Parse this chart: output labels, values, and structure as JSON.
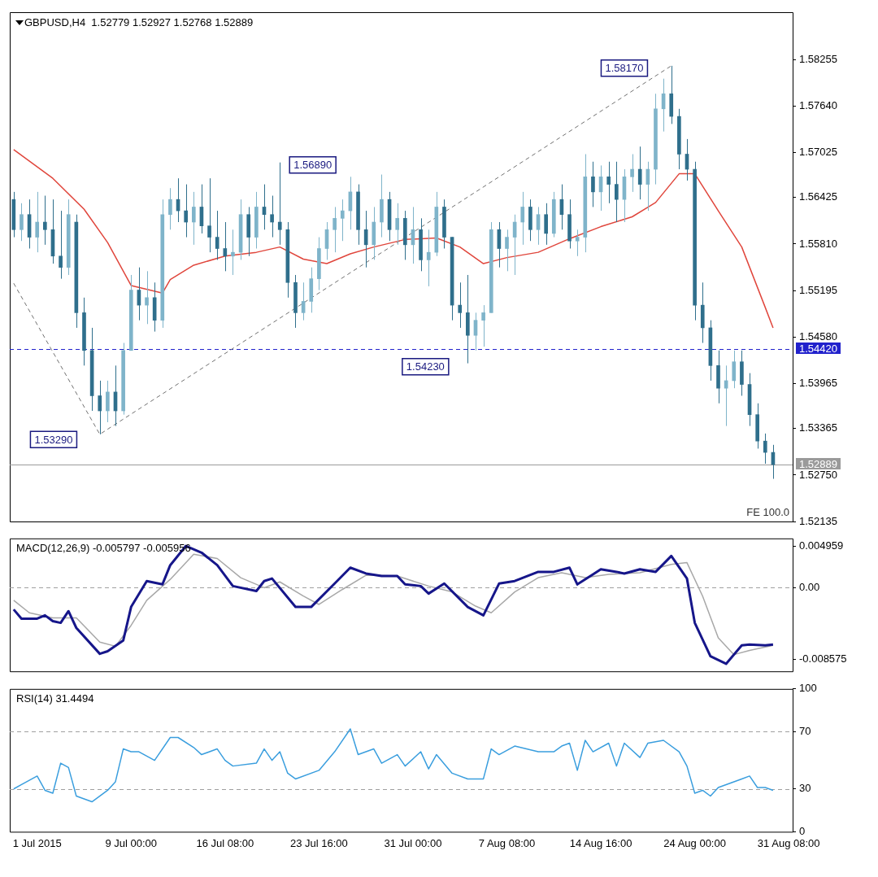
{
  "chart_data": [
    {
      "type": "candlestick",
      "title": "GBPUSD,H4  1.52779 1.52927 1.52768 1.52889",
      "colors": [
        "#2f6f8c",
        "#7fb4ca",
        "#2f6f8c",
        "#7fb4ca",
        "#2f6f8c",
        "#2f6f8c",
        "#2f6f8c",
        "#7fb4ca",
        "#2f6f8c",
        "#2f6f8c",
        "#2f6f8c",
        "#2f6f8c",
        "#7fb4ca",
        "#2f6f8c",
        "#7fb4ca",
        "#7fb4ca",
        "#2f6f8c",
        "#7fb4ca",
        "#2f6f8c",
        "#7fb4ca",
        "#7fb4ca",
        "#2f6f8c",
        "#2f6f8c",
        "#7fb4ca",
        "#2f6f8c",
        "#2f6f8c",
        "#2f6f8c",
        "#2f6f8c",
        "#7fb4ca",
        "#7fb4ca",
        "#2f6f8c",
        "#7fb4ca",
        "#2f6f8c",
        "#2f6f8c",
        "#2f6f8c",
        "#2f6f8c",
        "#2f6f8c",
        "#7fb4ca",
        "#7fb4ca",
        "#7fb4ca",
        "#7fb4ca",
        "#7fb4ca",
        "#7fb4ca",
        "#7fb4ca",
        "#2f6f8c",
        "#2f6f8c",
        "#7fb4ca",
        "#7fb4ca",
        "#2f6f8c",
        "#7fb4ca",
        "#2f6f8c",
        "#7fb4ca",
        "#2f6f8c",
        "#7fb4ca",
        "#7fb4ca",
        "#2f6f8c",
        "#2f6f8c",
        "#2f6f8c",
        "#2f6f8c",
        "#7fb4ca",
        "#7fb4ca",
        "#7fb4ca",
        "#2f6f8c",
        "#7fb4ca",
        "#7fb4ca",
        "#7fb4ca",
        "#2f6f8c",
        "#7fb4ca",
        "#2f6f8c",
        "#7fb4ca",
        "#2f6f8c",
        "#2f6f8c",
        "#7fb4ca",
        "#7fb4ca",
        "#2f6f8c",
        "#7fb4ca",
        "#2f6f8c",
        "#2f6f8c",
        "#7fb4ca",
        "#7fb4ca",
        "#2f6f8c",
        "#7fb4ca",
        "#7fb4ca",
        "#7fb4ca",
        "#2f6f8c",
        "#2f6f8c",
        "#2f6f8c",
        "#2f6f8c",
        "#2f6f8c",
        "#2f6f8c",
        "#2f6f8c",
        "#7fb4ca",
        "#7fb4ca",
        "#2f6f8c",
        "#2f6f8c",
        "#2f6f8c",
        "#2f6f8c",
        "#2f6f8c",
        null,
        null
      ],
      "tick_labels": "y",
      "legend": false,
      "grid": false,
      "categories": [
        null,
        null,
        null,
        null,
        null,
        null,
        null,
        null,
        null,
        null,
        null,
        null,
        null,
        null,
        null,
        null,
        null,
        null,
        null,
        null,
        null,
        null,
        null,
        null,
        null,
        null,
        null,
        null,
        null,
        null,
        null,
        null,
        null,
        null,
        null,
        null,
        null,
        null,
        null,
        null,
        null,
        null,
        null,
        null,
        null,
        null,
        null,
        null,
        null,
        null,
        null,
        null,
        null,
        null,
        null,
        null,
        null,
        null,
        null,
        null,
        null,
        null,
        null,
        null,
        null,
        null,
        null,
        null,
        null,
        null,
        null,
        null,
        null,
        null,
        null,
        null,
        null,
        null,
        null,
        null,
        null,
        null,
        null,
        null,
        null,
        null,
        null,
        null,
        null,
        null,
        null,
        null,
        null,
        null,
        null,
        null,
        null,
        null,
        null,
        null
      ],
      "ohlc": [
        [
          1.564,
          1.565,
          1.559,
          1.56
        ],
        [
          1.56,
          1.5635,
          1.5585,
          1.562
        ],
        [
          1.562,
          1.564,
          1.5575,
          1.559
        ],
        [
          1.559,
          1.565,
          1.557,
          1.561
        ],
        [
          1.561,
          1.5645,
          1.558,
          1.56
        ],
        [
          1.56,
          1.564,
          1.5555,
          1.5565
        ],
        [
          1.5565,
          1.5625,
          1.5535,
          1.555
        ],
        [
          1.555,
          1.564,
          1.554,
          1.562
        ],
        [
          1.561,
          1.562,
          1.547,
          1.549
        ],
        [
          1.549,
          1.551,
          1.542,
          1.544
        ],
        [
          1.544,
          1.547,
          1.536,
          1.538
        ],
        [
          1.538,
          1.54,
          1.5329,
          1.536
        ],
        [
          1.536,
          1.54,
          1.5345,
          1.5385
        ],
        [
          1.5385,
          1.542,
          1.534,
          1.536
        ],
        [
          1.536,
          1.545,
          1.5355,
          1.544
        ],
        [
          1.544,
          1.554,
          1.544,
          1.552
        ],
        [
          1.552,
          1.555,
          1.548,
          1.55
        ],
        [
          1.55,
          1.5545,
          1.5475,
          1.551
        ],
        [
          1.551,
          1.553,
          1.5465,
          1.548
        ],
        [
          1.548,
          1.564,
          1.547,
          1.562
        ],
        [
          1.562,
          1.5655,
          1.56,
          1.564
        ],
        [
          1.564,
          1.5668,
          1.561,
          1.5625
        ],
        [
          1.5625,
          1.566,
          1.559,
          1.561
        ],
        [
          1.561,
          1.565,
          1.558,
          1.563
        ],
        [
          1.563,
          1.566,
          1.5595,
          1.5605
        ],
        [
          1.5605,
          1.5668,
          1.557,
          1.559
        ],
        [
          1.559,
          1.5625,
          1.556,
          1.5575
        ],
        [
          1.5575,
          1.561,
          1.5545,
          1.5565
        ],
        [
          1.5565,
          1.56,
          1.554,
          1.557
        ],
        [
          1.557,
          1.564,
          1.556,
          1.562
        ],
        [
          1.562,
          1.563,
          1.5565,
          1.559
        ],
        [
          1.559,
          1.565,
          1.5575,
          1.563
        ],
        [
          1.563,
          1.566,
          1.56,
          1.562
        ],
        [
          1.562,
          1.5645,
          1.559,
          1.561
        ],
        [
          1.561,
          1.5689,
          1.558,
          1.56
        ],
        [
          1.56,
          1.561,
          1.551,
          1.553
        ],
        [
          1.553,
          1.554,
          1.547,
          1.549
        ],
        [
          1.549,
          1.553,
          1.548,
          1.5505
        ],
        [
          1.5505,
          1.555,
          1.549,
          1.5535
        ],
        [
          1.5535,
          1.559,
          1.552,
          1.5575
        ],
        [
          1.5575,
          1.561,
          1.556,
          1.56
        ],
        [
          1.56,
          1.563,
          1.557,
          1.5615
        ],
        [
          1.5615,
          1.564,
          1.5585,
          1.5625
        ],
        [
          1.5625,
          1.567,
          1.56,
          1.565
        ],
        [
          1.565,
          1.566,
          1.558,
          1.56
        ],
        [
          1.56,
          1.5625,
          1.555,
          1.558
        ],
        [
          1.558,
          1.563,
          1.556,
          1.561
        ],
        [
          1.561,
          1.5673,
          1.559,
          1.564
        ],
        [
          1.564,
          1.565,
          1.5585,
          1.56
        ],
        [
          1.56,
          1.5635,
          1.558,
          1.5615
        ],
        [
          1.5615,
          1.5625,
          1.556,
          1.558
        ],
        [
          1.558,
          1.563,
          1.5555,
          1.56
        ],
        [
          1.56,
          1.5615,
          1.5545,
          1.556
        ],
        [
          1.556,
          1.56,
          1.5525,
          1.557
        ],
        [
          1.557,
          1.565,
          1.5565,
          1.563
        ],
        [
          1.563,
          1.564,
          1.5575,
          1.559
        ],
        [
          1.559,
          1.559,
          1.548,
          1.55
        ],
        [
          1.55,
          1.553,
          1.547,
          1.549
        ],
        [
          1.549,
          1.554,
          1.5423,
          1.546
        ],
        [
          1.546,
          1.549,
          1.544,
          1.548
        ],
        [
          1.548,
          1.55,
          1.5445,
          1.549
        ],
        [
          1.549,
          1.561,
          1.549,
          1.56
        ],
        [
          1.56,
          1.561,
          1.555,
          1.5575
        ],
        [
          1.5575,
          1.56,
          1.5545,
          1.559
        ],
        [
          1.559,
          1.562,
          1.554,
          1.561
        ],
        [
          1.561,
          1.565,
          1.558,
          1.563
        ],
        [
          1.563,
          1.564,
          1.5585,
          1.56
        ],
        [
          1.56,
          1.563,
          1.558,
          1.562
        ],
        [
          1.562,
          1.5635,
          1.558,
          1.5595
        ],
        [
          1.5595,
          1.565,
          1.559,
          1.564
        ],
        [
          1.564,
          1.566,
          1.56,
          1.562
        ],
        [
          1.562,
          1.564,
          1.5575,
          1.5585
        ],
        [
          1.5585,
          1.56,
          1.5565,
          1.559
        ],
        [
          1.559,
          1.57,
          1.557,
          1.567
        ],
        [
          1.567,
          1.569,
          1.563,
          1.565
        ],
        [
          1.565,
          1.5685,
          1.5625,
          1.567
        ],
        [
          1.567,
          1.569,
          1.5635,
          1.566
        ],
        [
          1.566,
          1.569,
          1.561,
          1.564
        ],
        [
          1.564,
          1.568,
          1.561,
          1.567
        ],
        [
          1.567,
          1.57,
          1.565,
          1.568
        ],
        [
          1.568,
          1.571,
          1.564,
          1.566
        ],
        [
          1.566,
          1.569,
          1.5625,
          1.568
        ],
        [
          1.568,
          1.578,
          1.566,
          1.576
        ],
        [
          1.576,
          1.58,
          1.573,
          1.578
        ],
        [
          1.578,
          1.5817,
          1.574,
          1.575
        ],
        [
          1.575,
          1.576,
          1.568,
          1.57
        ],
        [
          1.57,
          1.572,
          1.5665,
          1.568
        ],
        [
          1.568,
          1.569,
          1.548,
          1.55
        ],
        [
          1.55,
          1.553,
          1.545,
          1.547
        ],
        [
          1.547,
          1.548,
          1.54,
          1.542
        ],
        [
          1.542,
          1.544,
          1.537,
          1.539
        ],
        [
          1.539,
          1.542,
          1.534,
          1.54
        ],
        [
          1.54,
          1.544,
          1.539,
          1.5425
        ],
        [
          1.5425,
          1.544,
          1.538,
          1.5395
        ],
        [
          1.5395,
          1.541,
          1.534,
          1.5355
        ],
        [
          1.5355,
          1.537,
          1.531,
          1.532
        ],
        [
          1.532,
          1.533,
          1.529,
          1.5305
        ],
        [
          1.5305,
          1.5315,
          1.527,
          1.52889
        ],
        null,
        null
      ],
      "series": [
        {
          "type": "line",
          "color": "#e0463c",
          "values": [
            1.5706,
            null,
            null,
            null,
            null,
            1.5668,
            null,
            null,
            null,
            1.5627,
            null,
            null,
            1.5583,
            null,
            null,
            1.5526,
            null,
            null,
            null,
            1.5516,
            1.5534,
            null,
            null,
            1.5553,
            null,
            null,
            null,
            1.5565,
            null,
            null,
            null,
            1.557,
            null,
            null,
            1.5577,
            null,
            null,
            1.5561,
            null,
            null,
            1.5555,
            null,
            null,
            1.5568,
            null,
            null,
            1.5577,
            null,
            null,
            null,
            1.5587,
            null,
            null,
            null,
            1.5589,
            null,
            null,
            1.5577,
            null,
            null,
            1.5555,
            null,
            null,
            1.5563,
            null,
            null,
            null,
            1.557,
            null,
            null,
            null,
            1.5588,
            null,
            null,
            null,
            1.5604,
            null,
            null,
            null,
            1.5617,
            null,
            null,
            1.5636,
            null,
            null,
            1.5674,
            null,
            1.5674,
            null,
            null,
            1.5625,
            null,
            null,
            1.5577,
            null,
            null,
            1.5497,
            1.547,
            null,
            null
          ]
        },
        {
          "type": "line",
          "color": "#707070",
          "line_style": "dashed",
          "values": [
            1.5529,
            null,
            null,
            null,
            null,
            null,
            null,
            null,
            null,
            null,
            null,
            1.5329,
            null,
            null,
            null,
            null,
            null,
            null,
            null,
            null,
            null,
            null,
            null,
            null,
            null,
            null,
            null,
            null,
            null,
            null,
            null,
            null,
            null,
            null,
            null,
            null,
            null,
            null,
            null,
            null,
            null,
            null,
            null,
            null,
            null,
            null,
            null,
            null,
            null,
            null,
            null,
            null,
            null,
            null,
            null,
            null,
            null,
            null,
            null,
            null,
            null,
            null,
            null,
            null,
            null,
            null,
            null,
            null,
            null,
            null,
            null,
            null,
            null,
            null,
            null,
            null,
            null,
            null,
            null,
            null,
            null,
            null,
            null,
            null,
            1.5817,
            null,
            null,
            null,
            null,
            null,
            null,
            null,
            null,
            null,
            null,
            null,
            null,
            null,
            null,
            null
          ]
        }
      ],
      "ylim": [
        1.52135,
        1.5888
      ],
      "yticks": [
        1.52135,
        {
          "value": 1.5275,
          "label": "1.52750"
        },
        1.53365,
        1.53965,
        {
          "value": 1.5458,
          "label": "1.54580"
        },
        1.55195,
        {
          "value": 1.5581,
          "label": "1.55810"
        },
        1.56425,
        1.57025,
        {
          "value": 1.5764,
          "label": "1.57640"
        },
        1.58255
      ],
      "ref_lines": [
        {
          "axis": "y",
          "value": 1.5442,
          "label": "1.54420",
          "color": "#2222cc",
          "line_style": "dashed"
        },
        {
          "axis": "y",
          "value": 1.52889,
          "label": "1.52889",
          "color": "#9a9a9a"
        }
      ],
      "annotations": [
        "1.58170",
        "1.56890",
        "1.54230",
        "1.53290",
        "FE 100.0"
      ]
    },
    {
      "type": "line",
      "title": "MACD(12,26,9) -0.005797 -0.005956",
      "tick_labels": "y",
      "legend": false,
      "grid": false,
      "categories": [
        null,
        null,
        null,
        null,
        null,
        null,
        null,
        null,
        null,
        null,
        null,
        null,
        null,
        null,
        null,
        null,
        null,
        null,
        null,
        null,
        null,
        null,
        null,
        null,
        null,
        null,
        null,
        null,
        null,
        null,
        null,
        null,
        null,
        null,
        null,
        null,
        null,
        null,
        null,
        null,
        null,
        null,
        null,
        null,
        null,
        null,
        null,
        null,
        null,
        null,
        null,
        null,
        null,
        null,
        null,
        null,
        null,
        null,
        null,
        null,
        null,
        null,
        null,
        null,
        null,
        null,
        null,
        null,
        null,
        null,
        null,
        null,
        null,
        null,
        null,
        null,
        null,
        null,
        null,
        null,
        null,
        null,
        null,
        null,
        null,
        null,
        null,
        null,
        null,
        null,
        null,
        null,
        null,
        null,
        null,
        null,
        null,
        null,
        null,
        null
      ],
      "series": [
        {
          "color": "#16168a",
          "values": [
            -0.0026,
            -0.0037,
            null,
            -0.0037,
            -0.0033,
            -0.004,
            -0.0042,
            -0.0028,
            -0.0048,
            null,
            null,
            -0.0079,
            -0.0076,
            null,
            -0.0063,
            -0.0023,
            null,
            0.0008,
            null,
            0.0004,
            0.0027,
            null,
            0.005,
            null,
            0.0042,
            null,
            0.0027,
            null,
            0.0002,
            null,
            null,
            -0.0004,
            0.0008,
            0.0011,
            null,
            null,
            -0.0023,
            null,
            -0.0023,
            null,
            null,
            0.0005,
            null,
            0.0024,
            null,
            0.0017,
            null,
            0.0014,
            null,
            0.0014,
            0.0004,
            null,
            0.0002,
            -0.0007,
            null,
            0.0005,
            null,
            null,
            -0.0023,
            null,
            -0.0033,
            null,
            0.0005,
            null,
            0.0008,
            null,
            null,
            0.0019,
            null,
            0.0019,
            null,
            0.0024,
            0.0004,
            null,
            0.0016,
            0.0022,
            null,
            0.0019,
            0.0017,
            null,
            0.0022,
            null,
            0.0019,
            null,
            0.0038,
            null,
            0.0011,
            -0.0042,
            null,
            -0.0082,
            null,
            -0.0091,
            null,
            -0.0069,
            -0.0068,
            null,
            -0.0069,
            -0.0068,
            null,
            null
          ]
        },
        {
          "color": "#a8a8a8",
          "values": [
            -0.0015,
            null,
            -0.003,
            null,
            null,
            -0.0036,
            null,
            null,
            -0.0036,
            null,
            null,
            -0.0065,
            null,
            -0.007,
            null,
            -0.0045,
            null,
            -0.0015,
            null,
            null,
            0.001,
            null,
            null,
            0.004,
            null,
            null,
            0.0035,
            null,
            null,
            0.0012,
            null,
            null,
            0,
            null,
            0.0007,
            null,
            null,
            -0.001,
            null,
            -0.002,
            null,
            null,
            -0.0002,
            null,
            null,
            0.0015,
            null,
            null,
            null,
            0.0014,
            null,
            null,
            null,
            0.0002,
            null,
            null,
            -0.0005,
            null,
            null,
            -0.0022,
            null,
            -0.003,
            null,
            null,
            -0.0005,
            null,
            null,
            0.0012,
            null,
            null,
            0.0018,
            null,
            null,
            0.0012,
            null,
            null,
            0.0016,
            null,
            null,
            null,
            0.0018,
            null,
            null,
            null,
            0.0028,
            null,
            0.003,
            null,
            -0.001,
            null,
            -0.006,
            null,
            -0.008,
            null,
            -0.0075,
            null,
            null,
            -0.0069,
            null,
            null
          ]
        }
      ],
      "ylim": [
        -0.01,
        0.0059
      ],
      "yticks": [
        -0.008575,
        {
          "value": 0,
          "label": "0.00"
        },
        0.004959
      ],
      "ref_lines": [
        {
          "axis": "y",
          "value": 0,
          "color": "#a0a0a0",
          "line_style": "dashed"
        }
      ]
    },
    {
      "type": "line",
      "title": "RSI(14) 31.4494",
      "legend": false,
      "grid": false,
      "categories": [
        null,
        null,
        null,
        "1 Jul 2015",
        null,
        null,
        null,
        null,
        null,
        null,
        null,
        null,
        null,
        null,
        null,
        "9 Jul 00:00",
        null,
        null,
        null,
        null,
        null,
        null,
        null,
        null,
        null,
        null,
        null,
        "16 Jul 08:00",
        null,
        null,
        null,
        null,
        null,
        null,
        null,
        null,
        null,
        null,
        null,
        "23 Jul 16:00",
        null,
        null,
        null,
        null,
        null,
        null,
        null,
        null,
        null,
        null,
        null,
        "31 Jul 00:00",
        null,
        null,
        null,
        null,
        null,
        null,
        null,
        null,
        null,
        null,
        null,
        "7 Aug 08:00",
        null,
        null,
        null,
        null,
        null,
        null,
        null,
        null,
        null,
        null,
        null,
        "14 Aug 16:00",
        null,
        null,
        null,
        null,
        null,
        null,
        null,
        null,
        null,
        null,
        null,
        "24 Aug 00:00",
        null,
        null,
        null,
        null,
        null,
        null,
        null,
        null,
        null,
        null,
        null,
        "31 Aug 08:00"
      ],
      "series": [
        {
          "color": "#3a9ede",
          "values": [
            30,
            33,
            null,
            39,
            29,
            27,
            48,
            45,
            25,
            23,
            21,
            null,
            29,
            35,
            58,
            56,
            56,
            null,
            50,
            null,
            66,
            66,
            null,
            59,
            54,
            null,
            58,
            50,
            46,
            null,
            null,
            48,
            58,
            50,
            56,
            41,
            37,
            null,
            null,
            43,
            null,
            56,
            null,
            72,
            54,
            null,
            58,
            48,
            null,
            54,
            46,
            null,
            56,
            44,
            54,
            null,
            41,
            null,
            37,
            null,
            37,
            58,
            54,
            null,
            60,
            null,
            null,
            56,
            null,
            56,
            60,
            62,
            43,
            64,
            56,
            null,
            62,
            46,
            62,
            null,
            52,
            62,
            null,
            64,
            null,
            56,
            46,
            27,
            29,
            25,
            31,
            null,
            35,
            37,
            39,
            31,
            31,
            29,
            null,
            null
          ]
        }
      ],
      "ylim": [
        0,
        100
      ],
      "yticks": [
        0,
        30,
        70,
        100
      ],
      "ref_lines": [
        {
          "axis": "y",
          "value": 70,
          "color": "#a0a0a0",
          "line_style": "dashed"
        },
        {
          "axis": "y",
          "value": 30,
          "color": "#a0a0a0",
          "line_style": "dashed"
        }
      ]
    }
  ]
}
